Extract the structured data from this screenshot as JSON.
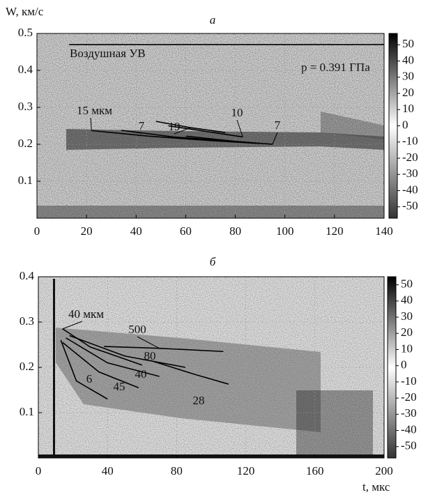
{
  "chart_data": [
    {
      "type": "line",
      "title": "а",
      "ylabel": "W, км/с",
      "annotations": [
        "p = 0.391 ГПа"
      ],
      "xlim": [
        0,
        140
      ],
      "xticks": [
        0,
        20,
        40,
        60,
        80,
        100,
        120,
        140
      ],
      "ylim": [
        0,
        0.5
      ],
      "yticks": [
        0.1,
        0.2,
        0.3,
        0.4,
        0.5
      ],
      "clim": [
        -57,
        57
      ],
      "cticks": [
        50,
        40,
        30,
        20,
        10,
        0,
        -10,
        -20,
        -30,
        -40,
        -50
      ],
      "grid": true,
      "series": [
        {
          "name": "Воздушная УВ",
          "color": "#000",
          "x": [
            13,
            140
          ],
          "values": [
            0.47,
            0.47
          ]
        },
        {
          "name": "15 мкм",
          "color": "#000",
          "x": [
            22,
            45,
            70,
            90
          ],
          "values": [
            0.237,
            0.222,
            0.21,
            0.202
          ]
        },
        {
          "name": "7",
          "color": "#000",
          "x": [
            34,
            55,
            75
          ],
          "values": [
            0.238,
            0.22,
            0.21
          ]
        },
        {
          "name": "19",
          "color": "#000",
          "x": [
            48,
            62,
            76
          ],
          "values": [
            0.262,
            0.245,
            0.232
          ]
        },
        {
          "name": "10",
          "color": "#000",
          "x": [
            53,
            68,
            83
          ],
          "values": [
            0.25,
            0.235,
            0.22
          ]
        },
        {
          "name": "7",
          "color": "#000",
          "x": [
            60,
            80,
            95
          ],
          "values": [
            0.222,
            0.208,
            0.2
          ]
        }
      ]
    },
    {
      "type": "line",
      "title": "б",
      "xlabel": "t, мкс",
      "xlim": [
        0,
        200
      ],
      "xticks": [
        0,
        40,
        80,
        120,
        160,
        200
      ],
      "ylim": [
        0,
        0.4
      ],
      "yticks": [
        0.1,
        0.2,
        0.3,
        0.4
      ],
      "clim": [
        -57,
        55
      ],
      "cticks": [
        50,
        40,
        30,
        20,
        10,
        0,
        -10,
        -20,
        -30,
        -40,
        -50
      ],
      "grid": true,
      "series": [
        {
          "name": "40 мкм",
          "color": "#000",
          "x": [
            14,
            30,
            60
          ],
          "values": [
            0.285,
            0.245,
            0.205
          ]
        },
        {
          "name": "500",
          "color": "#000",
          "x": [
            38,
            70,
            107
          ],
          "values": [
            0.246,
            0.242,
            0.235
          ]
        },
        {
          "name": "80",
          "color": "#000",
          "x": [
            18,
            50,
            85
          ],
          "values": [
            0.27,
            0.225,
            0.2
          ]
        },
        {
          "name": "40",
          "color": "#000",
          "x": [
            16,
            40,
            70
          ],
          "values": [
            0.265,
            0.21,
            0.18
          ]
        },
        {
          "name": "6",
          "color": "#000",
          "x": [
            13,
            22,
            40
          ],
          "values": [
            0.26,
            0.17,
            0.13
          ]
        },
        {
          "name": "45",
          "color": "#000",
          "x": [
            14,
            35,
            58
          ],
          "values": [
            0.255,
            0.19,
            0.155
          ]
        },
        {
          "name": "28",
          "color": "#000",
          "x": [
            65,
            90,
            110
          ],
          "values": [
            0.215,
            0.185,
            0.163
          ]
        }
      ]
    }
  ]
}
